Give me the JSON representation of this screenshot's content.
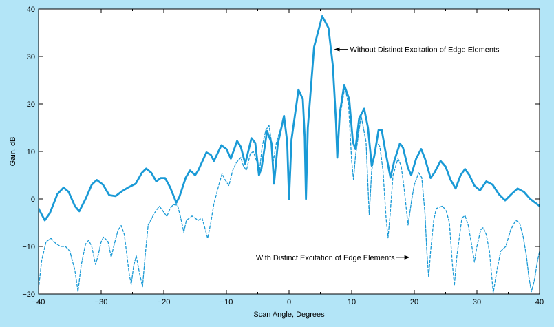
{
  "chart_data": {
    "type": "line",
    "title": "",
    "xlabel": "Scan Angle, Degrees",
    "ylabel": "Gain, dB",
    "xlim": [
      -40,
      40
    ],
    "ylim": [
      -20,
      40
    ],
    "x_ticks": [
      -40,
      -30,
      -20,
      -10,
      0,
      10,
      20,
      30,
      40
    ],
    "y_ticks": [
      -20,
      -10,
      0,
      10,
      20,
      30,
      40
    ],
    "x_tick_labels": [
      "−40",
      "−30",
      "−20",
      "−10",
      "0",
      "10",
      "20",
      "30",
      "40"
    ],
    "y_tick_labels": [
      "−20",
      "−10",
      "0",
      "10",
      "20",
      "30",
      "40"
    ],
    "grid": false,
    "series": [
      {
        "name": "Without Distinct Excitation of Edge Elements",
        "style": "solid",
        "color": "#1a9ad6",
        "points": [
          [
            -40,
            -2
          ],
          [
            -39,
            -4.5
          ],
          [
            -38.2,
            -3
          ],
          [
            -37,
            1
          ],
          [
            -36,
            2.4
          ],
          [
            -35.2,
            1.5
          ],
          [
            -34.2,
            -1.5
          ],
          [
            -33.5,
            -2.6
          ],
          [
            -32.5,
            0
          ],
          [
            -31.5,
            3
          ],
          [
            -30.7,
            4
          ],
          [
            -29.7,
            3
          ],
          [
            -28.7,
            0.8
          ],
          [
            -27.7,
            0.6
          ],
          [
            -26.6,
            1.7
          ],
          [
            -25.7,
            2.4
          ],
          [
            -24.5,
            3.2
          ],
          [
            -23.5,
            5.5
          ],
          [
            -22.8,
            6.4
          ],
          [
            -22,
            5.5
          ],
          [
            -21.2,
            3.7
          ],
          [
            -20.5,
            4.4
          ],
          [
            -19.8,
            4.4
          ],
          [
            -19,
            2.5
          ],
          [
            -18,
            -0.8
          ],
          [
            -17.5,
            0.5
          ],
          [
            -16.5,
            4.5
          ],
          [
            -15.8,
            6
          ],
          [
            -15,
            5
          ],
          [
            -14.5,
            6
          ],
          [
            -13.2,
            9.8
          ],
          [
            -12.5,
            9.3
          ],
          [
            -12,
            8
          ],
          [
            -10.8,
            11.3
          ],
          [
            -10,
            10.5
          ],
          [
            -9.3,
            8.5
          ],
          [
            -8.3,
            12.2
          ],
          [
            -7.7,
            11
          ],
          [
            -7,
            7.4
          ],
          [
            -6,
            12.8
          ],
          [
            -5.4,
            11.8
          ],
          [
            -4.8,
            5
          ],
          [
            -4.4,
            6.5
          ],
          [
            -3.5,
            14.3
          ],
          [
            -2.8,
            11.8
          ],
          [
            -2.4,
            3.2
          ],
          [
            -1.8,
            11.5
          ],
          [
            -0.8,
            17.5
          ],
          [
            -0.3,
            12
          ],
          [
            0,
            0
          ],
          [
            0.4,
            12.5
          ],
          [
            1.5,
            23
          ],
          [
            2.2,
            21
          ],
          [
            2.5,
            13
          ],
          [
            2.7,
            0
          ],
          [
            3,
            15
          ],
          [
            4,
            32
          ],
          [
            5.3,
            38.5
          ],
          [
            6.3,
            36
          ],
          [
            7,
            28
          ],
          [
            7.5,
            16
          ],
          [
            7.7,
            8.7
          ],
          [
            8.1,
            18
          ],
          [
            8.8,
            24
          ],
          [
            9.6,
            21
          ],
          [
            10.2,
            12
          ],
          [
            10.6,
            10.5
          ],
          [
            11.2,
            17
          ],
          [
            12,
            19
          ],
          [
            12.6,
            15
          ],
          [
            13.2,
            7
          ],
          [
            13.6,
            9
          ],
          [
            14.3,
            14.5
          ],
          [
            14.8,
            14.5
          ],
          [
            15.4,
            10
          ],
          [
            16.2,
            4.5
          ],
          [
            16.8,
            8
          ],
          [
            17.7,
            11.7
          ],
          [
            18.2,
            10.8
          ],
          [
            19,
            6.5
          ],
          [
            19.5,
            5
          ],
          [
            20.3,
            8.5
          ],
          [
            21.1,
            10.5
          ],
          [
            21.7,
            8.5
          ],
          [
            22.6,
            4.4
          ],
          [
            23.2,
            5.5
          ],
          [
            24.2,
            8
          ],
          [
            25,
            6.8
          ],
          [
            25.8,
            4
          ],
          [
            26.6,
            2.2
          ],
          [
            27.4,
            5
          ],
          [
            28.1,
            6.3
          ],
          [
            28.8,
            5
          ],
          [
            29.6,
            2.8
          ],
          [
            30.5,
            1.8
          ],
          [
            31.5,
            3.7
          ],
          [
            32.5,
            3
          ],
          [
            33.5,
            1
          ],
          [
            34.5,
            -0.3
          ],
          [
            35.5,
            1
          ],
          [
            36.5,
            2.2
          ],
          [
            37.5,
            1.5
          ],
          [
            38.5,
            0
          ],
          [
            39.5,
            -1
          ],
          [
            40,
            -1.5
          ]
        ]
      },
      {
        "name": "With Distinct Excitation of Edge Elements",
        "style": "dashed",
        "color": "#1a9ad6",
        "points": [
          [
            -40,
            -19
          ],
          [
            -39.5,
            -13
          ],
          [
            -38.8,
            -9
          ],
          [
            -38,
            -8.3
          ],
          [
            -37.3,
            -9.3
          ],
          [
            -36.5,
            -10
          ],
          [
            -35.7,
            -10
          ],
          [
            -35,
            -11
          ],
          [
            -34.2,
            -15
          ],
          [
            -33.7,
            -19.5
          ],
          [
            -33.2,
            -14
          ],
          [
            -32.5,
            -9.5
          ],
          [
            -32,
            -8.7
          ],
          [
            -31.5,
            -10
          ],
          [
            -30.9,
            -13.8
          ],
          [
            -30.5,
            -12
          ],
          [
            -30,
            -9
          ],
          [
            -29.6,
            -8
          ],
          [
            -28.9,
            -9
          ],
          [
            -28.4,
            -12.3
          ],
          [
            -28,
            -10
          ],
          [
            -27.3,
            -6.5
          ],
          [
            -26.8,
            -5.6
          ],
          [
            -26.3,
            -7.5
          ],
          [
            -25.5,
            -16
          ],
          [
            -25.2,
            -18
          ],
          [
            -24.8,
            -14
          ],
          [
            -24.4,
            -12
          ],
          [
            -23.9,
            -15.5
          ],
          [
            -23.4,
            -18.5
          ],
          [
            -23,
            -12.3
          ],
          [
            -22.5,
            -5.5
          ],
          [
            -21.5,
            -3
          ],
          [
            -20.7,
            -1.5
          ],
          [
            -20,
            -2.8
          ],
          [
            -19.5,
            -3.7
          ],
          [
            -19,
            -2
          ],
          [
            -18.5,
            -1.2
          ],
          [
            -17.8,
            -1.3
          ],
          [
            -17.3,
            -4
          ],
          [
            -16.8,
            -7
          ],
          [
            -16.4,
            -4.5
          ],
          [
            -15.5,
            -3.6
          ],
          [
            -14.5,
            -4.5
          ],
          [
            -13.9,
            -4
          ],
          [
            -13.5,
            -5.8
          ],
          [
            -13,
            -8.3
          ],
          [
            -12.5,
            -5
          ],
          [
            -12,
            -1
          ],
          [
            -11.2,
            3
          ],
          [
            -10.7,
            5.3
          ],
          [
            -10.2,
            4
          ],
          [
            -9.6,
            2.8
          ],
          [
            -9,
            6
          ],
          [
            -8.4,
            7.7
          ],
          [
            -7.7,
            8.7
          ],
          [
            -7.3,
            7
          ],
          [
            -6.8,
            6
          ],
          [
            -6.2,
            9.5
          ],
          [
            -5.7,
            10
          ],
          [
            -5.2,
            8
          ],
          [
            -4.7,
            6
          ],
          [
            -4.3,
            11
          ],
          [
            -3.7,
            14.5
          ],
          [
            -3.2,
            15.5
          ],
          [
            -2.8,
            12
          ],
          [
            -2.5,
            8
          ],
          [
            -2,
            12
          ],
          [
            -1.3,
            15
          ],
          [
            -0.8,
            17.5
          ],
          [
            -0.3,
            12
          ],
          [
            0,
            0
          ],
          [
            0.4,
            12.5
          ],
          [
            1.5,
            23
          ],
          [
            2.2,
            21
          ],
          [
            2.5,
            13
          ],
          [
            2.7,
            0
          ],
          [
            3,
            15
          ],
          [
            4,
            32
          ],
          [
            5.3,
            38.5
          ],
          [
            6.3,
            36
          ],
          [
            7,
            28
          ],
          [
            7.5,
            16
          ],
          [
            7.7,
            8.7
          ],
          [
            8.1,
            17
          ],
          [
            8.9,
            23.5
          ],
          [
            9.5,
            20
          ],
          [
            10,
            8
          ],
          [
            10.3,
            4
          ],
          [
            10.6,
            9
          ],
          [
            11.5,
            17.5
          ],
          [
            12.3,
            12
          ],
          [
            12.8,
            -3.3
          ],
          [
            13.2,
            6
          ],
          [
            14,
            12
          ],
          [
            14.5,
            11
          ],
          [
            15,
            6
          ],
          [
            15.5,
            -4
          ],
          [
            15.8,
            -8.2
          ],
          [
            16.1,
            -4
          ],
          [
            16.6,
            5
          ],
          [
            17.4,
            8.5
          ],
          [
            17.9,
            7
          ],
          [
            18.4,
            2
          ],
          [
            19,
            -5.5
          ],
          [
            19.6,
            0
          ],
          [
            20,
            3
          ],
          [
            20.7,
            5.5
          ],
          [
            21.2,
            4.5
          ],
          [
            21.7,
            -3
          ],
          [
            22,
            -11
          ],
          [
            22.3,
            -16.5
          ],
          [
            22.6,
            -11
          ],
          [
            23.1,
            -4.5
          ],
          [
            23.5,
            -2
          ],
          [
            24.5,
            -1.5
          ],
          [
            25.1,
            -2.5
          ],
          [
            25.6,
            -5
          ],
          [
            26.1,
            -14
          ],
          [
            26.4,
            -18.2
          ],
          [
            26.8,
            -12
          ],
          [
            27.6,
            -4
          ],
          [
            28.1,
            -3.5
          ],
          [
            28.6,
            -5.5
          ],
          [
            29.2,
            -10
          ],
          [
            29.6,
            -13.3
          ],
          [
            30,
            -10
          ],
          [
            30.6,
            -6.5
          ],
          [
            31,
            -6
          ],
          [
            31.5,
            -7.5
          ],
          [
            32,
            -11
          ],
          [
            32.6,
            -19.8
          ],
          [
            33.2,
            -15
          ],
          [
            33.8,
            -11
          ],
          [
            34.6,
            -10
          ],
          [
            35.4,
            -6.5
          ],
          [
            36.2,
            -4.5
          ],
          [
            36.8,
            -5
          ],
          [
            37.4,
            -8
          ],
          [
            37.9,
            -12
          ],
          [
            38.3,
            -16.5
          ],
          [
            38.7,
            -19.5
          ],
          [
            39.2,
            -17
          ],
          [
            39.6,
            -13.5
          ],
          [
            40,
            -11
          ]
        ]
      }
    ],
    "annotations": [
      {
        "text": "Without Distinct Excitation of Edge Elements",
        "x": 7.2,
        "y": 31.5,
        "arrow": "left"
      },
      {
        "text": "With Distinct Excitation of Edge Elements",
        "x": 19.3,
        "y": -12.3,
        "arrow": "right"
      }
    ]
  }
}
